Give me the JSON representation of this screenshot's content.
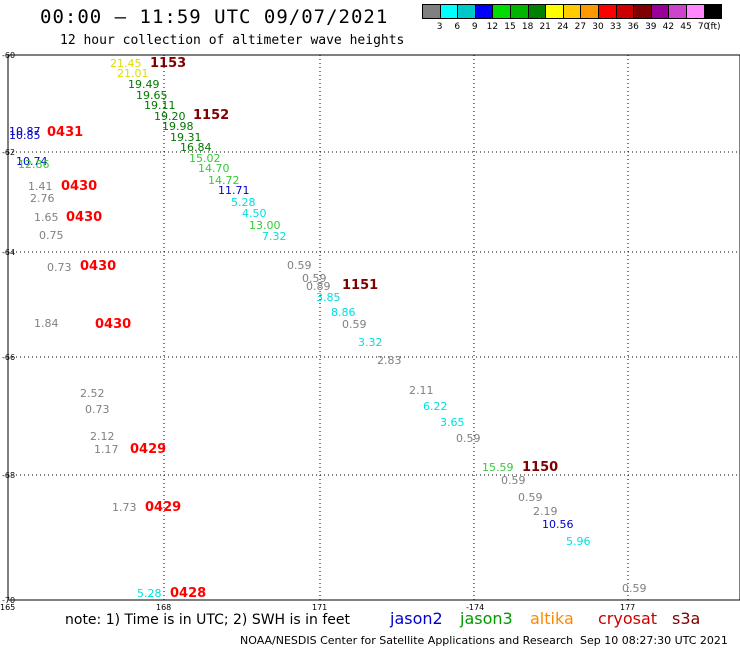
{
  "header": {
    "title": "00:00 – 11:59 UTC 09/07/2021",
    "subtitle": "12 hour collection of altimeter wave heights"
  },
  "legend": {
    "unit": "(ft)",
    "bins": [
      {
        "color": "#808080",
        "label": "3"
      },
      {
        "color": "#00ffff",
        "label": "6"
      },
      {
        "color": "#00c8c8",
        "label": "9"
      },
      {
        "color": "#0000ff",
        "label": "12"
      },
      {
        "color": "#00dc00",
        "label": "15"
      },
      {
        "color": "#00b400",
        "label": "18"
      },
      {
        "color": "#008000",
        "label": "21"
      },
      {
        "color": "#ffff00",
        "label": "24"
      },
      {
        "color": "#ffcc00",
        "label": "27"
      },
      {
        "color": "#ff9900",
        "label": "30"
      },
      {
        "color": "#ff0000",
        "label": "33"
      },
      {
        "color": "#cc0000",
        "label": "36"
      },
      {
        "color": "#800000",
        "label": "39"
      },
      {
        "color": "#990099",
        "label": "42"
      },
      {
        "color": "#cc44cc",
        "label": "45"
      },
      {
        "color": "#ff88ff",
        "label": "70"
      },
      {
        "color": "#000000",
        "label": ""
      }
    ]
  },
  "axes": {
    "lat_labels": [
      "-60",
      "-62",
      "-64",
      "-66",
      "-68",
      "-70"
    ],
    "lon_labels": [
      "165",
      "168",
      "171",
      "-174",
      "177"
    ]
  },
  "colors": {
    "c3": "#808080",
    "c6": "#00e0e0",
    "c12": "#0000cc",
    "c15": "#33cc33",
    "c21": "#007700",
    "c24": "#dddd00",
    "c39": "#800000",
    "red": "#ff0000"
  },
  "observations": [
    {
      "v": "21.45",
      "c": "c24"
    },
    {
      "v": "21.01",
      "c": "c24"
    },
    {
      "v": "19.49",
      "c": "c21"
    },
    {
      "v": "19.65",
      "c": "c21"
    },
    {
      "v": "19.11",
      "c": "c21"
    },
    {
      "v": "19.20",
      "c": "c21"
    },
    {
      "v": "19.98",
      "c": "c21"
    },
    {
      "v": "19.31",
      "c": "c21"
    },
    {
      "v": "16.84",
      "c": "c21"
    },
    {
      "v": "15.02",
      "c": "c15"
    },
    {
      "v": "14.70",
      "c": "c15"
    },
    {
      "v": "14.72",
      "c": "c15"
    },
    {
      "v": "11.71",
      "c": "c12"
    },
    {
      "v": "5.28",
      "c": "c6"
    },
    {
      "v": "4.50",
      "c": "c6"
    },
    {
      "v": "13.00",
      "c": "c15"
    },
    {
      "v": "7.32",
      "c": "c6"
    },
    {
      "v": "10.87",
      "c": "c12"
    },
    {
      "v": "10.85",
      "c": "c12"
    },
    {
      "v": "10.74",
      "c": "c12"
    },
    {
      "v": "12.86",
      "c": "c15"
    },
    {
      "v": "1.41",
      "c": "c3"
    },
    {
      "v": "2.76",
      "c": "c3"
    },
    {
      "v": "1.65",
      "c": "c3"
    },
    {
      "v": "0.75",
      "c": "c3"
    },
    {
      "v": "0.73",
      "c": "c3"
    },
    {
      "v": "1.84",
      "c": "c3"
    },
    {
      "v": "0.59",
      "c": "c3"
    },
    {
      "v": "0.59",
      "c": "c3"
    },
    {
      "v": "0.89",
      "c": "c3"
    },
    {
      "v": "3.85",
      "c": "c6"
    },
    {
      "v": "8.86",
      "c": "c6"
    },
    {
      "v": "0.59",
      "c": "c3"
    },
    {
      "v": "3.32",
      "c": "c6"
    },
    {
      "v": "2.83",
      "c": "c3"
    },
    {
      "v": "2.52",
      "c": "c3"
    },
    {
      "v": "0.73",
      "c": "c3"
    },
    {
      "v": "2.12",
      "c": "c3"
    },
    {
      "v": "1.17",
      "c": "c3"
    },
    {
      "v": "2.11",
      "c": "c3"
    },
    {
      "v": "6.22",
      "c": "c6"
    },
    {
      "v": "3.65",
      "c": "c6"
    },
    {
      "v": "0.59",
      "c": "c3"
    },
    {
      "v": "15.59",
      "c": "c15"
    },
    {
      "v": "0.59",
      "c": "c3"
    },
    {
      "v": "0.59",
      "c": "c3"
    },
    {
      "v": "2.19",
      "c": "c3"
    },
    {
      "v": "10.56",
      "c": "c12"
    },
    {
      "v": "5.96",
      "c": "c6"
    },
    {
      "v": "1.73",
      "c": "c3"
    },
    {
      "v": "5.28",
      "c": "c6"
    },
    {
      "v": "0.59",
      "c": "c3"
    }
  ],
  "time_labels": [
    {
      "t": "1153",
      "c": "c39"
    },
    {
      "t": "1152",
      "c": "c39"
    },
    {
      "t": "0431",
      "c": "red"
    },
    {
      "t": "0430",
      "c": "red"
    },
    {
      "t": "0430",
      "c": "red"
    },
    {
      "t": "0430",
      "c": "red"
    },
    {
      "t": "0430",
      "c": "red"
    },
    {
      "t": "1151",
      "c": "c39"
    },
    {
      "t": "0429",
      "c": "red"
    },
    {
      "t": "1150",
      "c": "c39"
    },
    {
      "t": "0429",
      "c": "red"
    },
    {
      "t": "0428",
      "c": "red"
    }
  ],
  "footer": {
    "note": "note: 1) Time is in UTC; 2) SWH is in feet",
    "satellites": [
      {
        "name": "jason2",
        "color": "#0000cc"
      },
      {
        "name": "jason3",
        "color": "#009900"
      },
      {
        "name": "altika",
        "color": "#ff8800"
      },
      {
        "name": "cryosat",
        "color": "#cc0000"
      },
      {
        "name": "s3a",
        "color": "#800000"
      }
    ],
    "credit": "NOAA/NESDIS Center for Satellite Applications and Research",
    "timestamp": "Sep 10 08:27:30 UTC 2021"
  }
}
